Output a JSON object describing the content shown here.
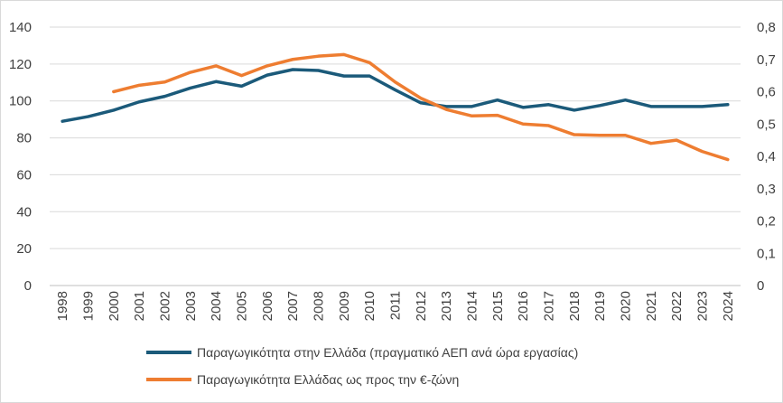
{
  "chart_data": {
    "type": "line",
    "categories": [
      "1998",
      "1999",
      "2000",
      "2001",
      "2002",
      "2003",
      "2004",
      "2005",
      "2006",
      "2007",
      "2008",
      "2009",
      "2010",
      "2011",
      "2012",
      "2013",
      "2014",
      "2015",
      "2016",
      "2017",
      "2018",
      "2019",
      "2020",
      "2021",
      "2022",
      "2023",
      "2024"
    ],
    "series": [
      {
        "name": "Παραγωγικότητα στην Ελλάδα (πραγματικό ΑΕΠ ανά ώρα εργασίας)",
        "axis": "left",
        "color": "#1b5a7a",
        "values": [
          89,
          91.5,
          95,
          99.5,
          102.5,
          107,
          110.5,
          108,
          114,
          117,
          116.5,
          113.5,
          113.5,
          106,
          99,
          97,
          97,
          100.5,
          96.5,
          98,
          95,
          97.5,
          100.5,
          97,
          97,
          97,
          98
        ]
      },
      {
        "name": "Παραγωγικότητα Ελλάδας ως προς την €-ζώνη",
        "axis": "right",
        "color": "#ee7d31",
        "values": [
          null,
          null,
          0.6,
          0.62,
          0.63,
          0.66,
          0.68,
          0.65,
          0.68,
          0.7,
          0.71,
          0.715,
          0.69,
          0.63,
          0.58,
          0.545,
          0.525,
          0.527,
          0.5,
          0.495,
          0.467,
          0.465,
          0.465,
          0.44,
          0.45,
          0.415,
          0.39
        ]
      }
    ],
    "yleft": {
      "min": 0,
      "max": 140,
      "ticks": [
        "0",
        "20",
        "40",
        "60",
        "80",
        "100",
        "120",
        "140"
      ]
    },
    "yright": {
      "min": 0,
      "max": 0.8,
      "ticks": [
        "0",
        "0,1",
        "0,2",
        "0,3",
        "0,4",
        "0,5",
        "0,6",
        "0,7",
        "0,8"
      ]
    },
    "grid": true,
    "legend_position": "bottom"
  },
  "legend": {
    "item1": "Παραγωγικότητα στην Ελλάδα (πραγματικό ΑΕΠ ανά ώρα εργασίας)",
    "item2": "Παραγωγικότητα Ελλάδας ως προς την €-ζώνη"
  }
}
